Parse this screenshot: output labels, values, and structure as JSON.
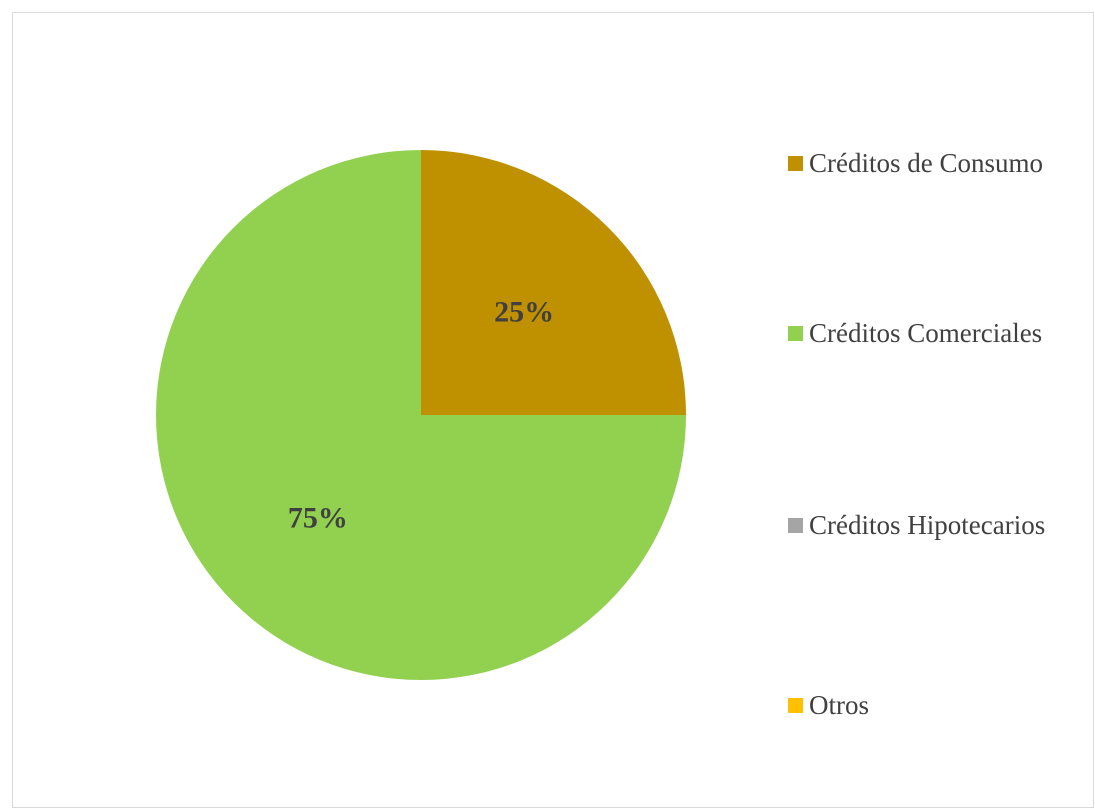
{
  "chart_data": {
    "type": "pie",
    "title": "",
    "categories": [
      "Créditos de Consumo",
      "Créditos Comerciales",
      "Créditos Hipotecarios",
      "Otros"
    ],
    "values": [
      25,
      75,
      0,
      0
    ],
    "data_labels": [
      "25%",
      "75%",
      "",
      ""
    ],
    "colors": [
      "#bf9000",
      "#92d050",
      "#a5a5a5",
      "#ffc000"
    ],
    "start_angle_deg": 0,
    "direction": "clockwise",
    "legend_position": "right"
  }
}
